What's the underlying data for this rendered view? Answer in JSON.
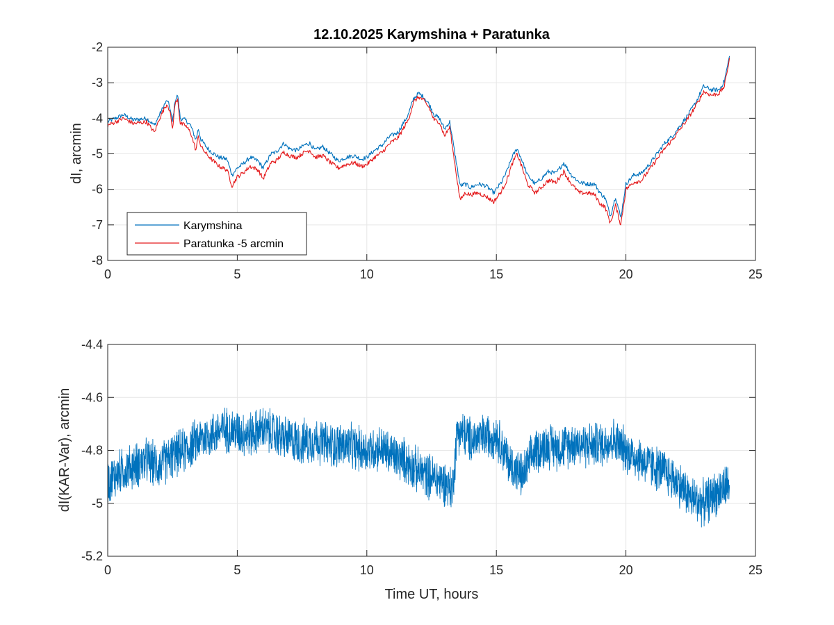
{
  "chart_data": [
    {
      "type": "line",
      "title": "12.10.2025  Karymshina + Paratunka",
      "xlabel": "",
      "ylabel": "dI, arcmin",
      "xlim": [
        0,
        25
      ],
      "ylim": [
        -8,
        -2
      ],
      "xticks": [
        0,
        5,
        10,
        15,
        20,
        25
      ],
      "yticks": [
        -8,
        -7,
        -6,
        -5,
        -4,
        -3,
        -2
      ],
      "xtick_labels": [
        "0",
        "5",
        "10",
        "15",
        "20",
        "25"
      ],
      "ytick_labels": [
        "-8",
        "-7",
        "-6",
        "-5",
        "-4",
        "-3",
        "-2"
      ],
      "grid": true,
      "legend_position": "bottom-left",
      "series": [
        {
          "name": "Karymshina",
          "color": "#0072bd",
          "x": [
            0,
            0.3,
            0.6,
            1.0,
            1.5,
            1.8,
            2.0,
            2.2,
            2.3,
            2.4,
            2.5,
            2.6,
            2.7,
            2.8,
            3.0,
            3.2,
            3.4,
            3.5,
            3.6,
            3.8,
            4.0,
            4.3,
            4.6,
            4.8,
            5.0,
            5.2,
            5.5,
            5.8,
            6.0,
            6.3,
            6.5,
            6.8,
            7.0,
            7.3,
            7.6,
            7.8,
            8.0,
            8.3,
            8.6,
            8.9,
            9.2,
            9.5,
            9.8,
            10.0,
            10.3,
            10.6,
            10.9,
            11.2,
            11.4,
            11.6,
            11.8,
            12.0,
            12.2,
            12.4,
            12.6,
            12.8,
            13.0,
            13.2,
            13.4,
            13.6,
            13.8,
            14.0,
            14.3,
            14.6,
            14.9,
            15.2,
            15.4,
            15.6,
            15.8,
            16.0,
            16.2,
            16.5,
            16.8,
            17.0,
            17.3,
            17.6,
            17.9,
            18.2,
            18.5,
            18.8,
            19.0,
            19.2,
            19.4,
            19.6,
            19.8,
            20.0,
            20.3,
            20.6,
            20.9,
            21.2,
            21.5,
            21.8,
            22.1,
            22.4,
            22.7,
            23.0,
            23.3,
            23.6,
            23.8,
            24.0
          ],
          "values": [
            -4.1,
            -4.0,
            -3.9,
            -4.05,
            -4.0,
            -4.2,
            -3.9,
            -3.6,
            -3.5,
            -3.7,
            -4.1,
            -3.5,
            -3.35,
            -4.0,
            -4.05,
            -4.2,
            -4.6,
            -4.3,
            -4.6,
            -4.8,
            -4.95,
            -5.1,
            -5.15,
            -5.6,
            -5.4,
            -5.3,
            -5.1,
            -5.2,
            -5.4,
            -5.0,
            -4.95,
            -4.7,
            -4.85,
            -4.9,
            -4.75,
            -4.7,
            -4.9,
            -4.8,
            -5.0,
            -5.2,
            -5.1,
            -5.05,
            -5.15,
            -5.1,
            -4.9,
            -4.75,
            -4.5,
            -4.4,
            -4.15,
            -3.9,
            -3.45,
            -3.3,
            -3.4,
            -3.6,
            -3.9,
            -4.0,
            -4.3,
            -4.1,
            -5.0,
            -5.9,
            -5.85,
            -5.95,
            -5.85,
            -5.9,
            -6.1,
            -5.8,
            -5.5,
            -5.1,
            -4.85,
            -5.2,
            -5.6,
            -5.85,
            -5.65,
            -5.5,
            -5.55,
            -5.25,
            -5.6,
            -5.8,
            -5.85,
            -5.85,
            -6.1,
            -6.25,
            -6.75,
            -6.2,
            -6.8,
            -5.85,
            -5.6,
            -5.55,
            -5.3,
            -5.0,
            -4.7,
            -4.5,
            -4.2,
            -3.9,
            -3.55,
            -3.1,
            -3.2,
            -3.2,
            -2.95,
            -2.25
          ]
        },
        {
          "name": "Paratunka -5 arcmin",
          "color": "#e41a1c",
          "x": [
            0,
            0.3,
            0.6,
            1.0,
            1.5,
            1.8,
            2.0,
            2.2,
            2.3,
            2.4,
            2.5,
            2.6,
            2.7,
            2.8,
            3.0,
            3.2,
            3.4,
            3.5,
            3.6,
            3.8,
            4.0,
            4.3,
            4.6,
            4.8,
            5.0,
            5.2,
            5.5,
            5.8,
            6.0,
            6.3,
            6.5,
            6.8,
            7.0,
            7.3,
            7.6,
            7.8,
            8.0,
            8.3,
            8.6,
            8.9,
            9.2,
            9.5,
            9.8,
            10.0,
            10.3,
            10.6,
            10.9,
            11.2,
            11.4,
            11.6,
            11.8,
            12.0,
            12.2,
            12.4,
            12.6,
            12.8,
            13.0,
            13.2,
            13.4,
            13.6,
            13.8,
            14.0,
            14.3,
            14.6,
            14.9,
            15.2,
            15.4,
            15.6,
            15.8,
            16.0,
            16.2,
            16.5,
            16.8,
            17.0,
            17.3,
            17.6,
            17.9,
            18.2,
            18.5,
            18.8,
            19.0,
            19.2,
            19.4,
            19.6,
            19.8,
            20.0,
            20.3,
            20.6,
            20.9,
            21.2,
            21.5,
            21.8,
            22.1,
            22.4,
            22.7,
            23.0,
            23.3,
            23.6,
            23.8,
            24.0
          ],
          "values": [
            -4.2,
            -4.1,
            -4.0,
            -4.15,
            -4.1,
            -4.4,
            -4.0,
            -3.7,
            -3.6,
            -3.8,
            -4.3,
            -3.6,
            -3.45,
            -4.15,
            -4.2,
            -4.4,
            -4.9,
            -4.5,
            -4.8,
            -5.0,
            -5.15,
            -5.35,
            -5.45,
            -5.9,
            -5.65,
            -5.55,
            -5.35,
            -5.45,
            -5.7,
            -5.25,
            -5.2,
            -4.95,
            -5.05,
            -5.1,
            -4.95,
            -4.9,
            -5.1,
            -5.05,
            -5.25,
            -5.4,
            -5.3,
            -5.25,
            -5.35,
            -5.3,
            -5.1,
            -4.95,
            -4.7,
            -4.55,
            -4.3,
            -4.05,
            -3.55,
            -3.4,
            -3.5,
            -3.7,
            -4.05,
            -4.1,
            -4.5,
            -4.25,
            -5.3,
            -6.3,
            -6.1,
            -6.15,
            -6.1,
            -6.2,
            -6.35,
            -6.05,
            -5.75,
            -5.3,
            -5.0,
            -5.4,
            -5.85,
            -6.1,
            -5.9,
            -5.75,
            -5.8,
            -5.5,
            -5.85,
            -6.1,
            -6.1,
            -6.15,
            -6.4,
            -6.5,
            -6.95,
            -6.45,
            -7.0,
            -6.0,
            -5.8,
            -5.75,
            -5.45,
            -5.15,
            -4.85,
            -4.6,
            -4.3,
            -4.0,
            -3.65,
            -3.25,
            -3.35,
            -3.3,
            -3.1,
            -2.3
          ]
        }
      ]
    },
    {
      "type": "line",
      "title": "",
      "xlabel": "Time UT, hours",
      "ylabel": "dI(KAR-Var), arcmin",
      "xlim": [
        0,
        25
      ],
      "ylim": [
        -5.2,
        -4.4
      ],
      "xticks": [
        0,
        5,
        10,
        15,
        20,
        25
      ],
      "yticks": [
        -5.2,
        -5.0,
        -4.8,
        -4.6,
        -4.4
      ],
      "xtick_labels": [
        "0",
        "5",
        "10",
        "15",
        "20",
        "25"
      ],
      "ytick_labels": [
        "-5.2",
        "-5",
        "-4.8",
        "-4.6",
        "-4.4"
      ],
      "grid": true,
      "series": [
        {
          "name": "dI(KAR-Var)",
          "color": "#0072bd",
          "noise_amplitude": 0.09,
          "x": [
            0,
            0.5,
            1.0,
            1.5,
            2.0,
            2.5,
            3.0,
            3.5,
            4.0,
            4.5,
            5.0,
            5.5,
            6.0,
            6.5,
            7.0,
            7.5,
            8.0,
            8.5,
            9.0,
            9.5,
            10.0,
            10.5,
            11.0,
            11.5,
            12.0,
            12.5,
            13.0,
            13.3,
            13.5,
            14.0,
            14.5,
            15.0,
            15.5,
            16.0,
            16.5,
            17.0,
            17.5,
            18.0,
            18.5,
            19.0,
            19.5,
            20.0,
            20.5,
            21.0,
            21.5,
            22.0,
            22.5,
            23.0,
            23.5,
            24.0
          ],
          "values": [
            -4.92,
            -4.88,
            -4.86,
            -4.84,
            -4.86,
            -4.82,
            -4.8,
            -4.76,
            -4.74,
            -4.72,
            -4.73,
            -4.74,
            -4.72,
            -4.74,
            -4.76,
            -4.77,
            -4.76,
            -4.78,
            -4.78,
            -4.79,
            -4.8,
            -4.79,
            -4.82,
            -4.84,
            -4.88,
            -4.9,
            -4.92,
            -4.95,
            -4.72,
            -4.76,
            -4.75,
            -4.74,
            -4.85,
            -4.9,
            -4.8,
            -4.78,
            -4.79,
            -4.77,
            -4.78,
            -4.78,
            -4.76,
            -4.8,
            -4.83,
            -4.86,
            -4.88,
            -4.92,
            -4.98,
            -5.0,
            -4.96,
            -4.93
          ]
        }
      ]
    }
  ]
}
